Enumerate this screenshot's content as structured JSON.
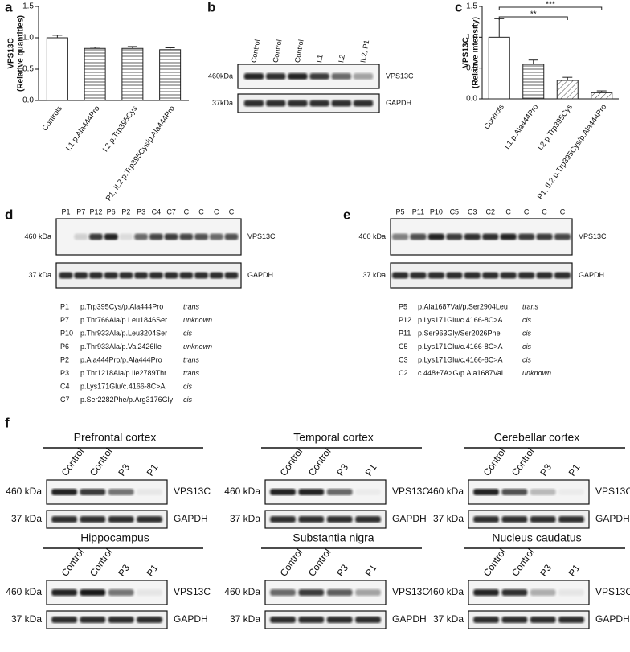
{
  "panel_labels": [
    "a",
    "b",
    "c",
    "d",
    "e",
    "f"
  ],
  "chart_data": [
    {
      "type": "bar",
      "ylabel": [
        "VPS13C",
        "(Relative quantities)"
      ],
      "categories": [
        "Controls",
        "I.1 p.Ala444Pro",
        "I.2 p.Trp395Cys",
        "P1, II.2 p.Trp395Cys/p.Ala444Pro"
      ],
      "values": [
        1.0,
        0.83,
        0.83,
        0.81
      ],
      "errors": [
        0.04,
        0.02,
        0.03,
        0.03
      ],
      "ylim": [
        0,
        1.5
      ],
      "yticks": [
        {
          "value": 0,
          "label": "0.0"
        },
        0.5,
        {
          "value": 1,
          "label": "1.0"
        },
        1.5
      ],
      "color": "#ffffff"
    },
    {
      "type": "bar",
      "ylabel": [
        "VPS13C",
        "(Relative intensity)"
      ],
      "categories": [
        "Controls",
        "I.1 p.Ala444Pro",
        "I.2 p.Trp395Cys",
        "P1, II.2 p.Trp395Cys/p.Ala444Pro"
      ],
      "values": [
        1.0,
        0.56,
        0.3,
        0.1
      ],
      "errors": [
        0.3,
        0.07,
        0.05,
        0.03
      ],
      "ylim": [
        0,
        1.5
      ],
      "yticks": [
        {
          "value": 0,
          "label": "0.0"
        },
        0.5,
        {
          "value": 1,
          "label": "1.0"
        },
        1.5
      ],
      "color": "#ffffff",
      "annotations": [
        "**",
        "***"
      ]
    }
  ],
  "blot_b": {
    "lanes": [
      "Control",
      "Control",
      "Control",
      "I.1",
      "I.2",
      "II.2, P1"
    ],
    "markers": [
      "460kDa",
      "37kDa"
    ],
    "proteins": [
      "VPS13C",
      "GAPDH"
    ]
  },
  "blot_d": {
    "lanes": [
      "P1",
      "P7",
      "P12",
      "P6",
      "P2",
      "P3",
      "C4",
      "C7",
      "C",
      "C",
      "C",
      "C"
    ],
    "markers": [
      "460 kDa",
      "37 kDa"
    ],
    "proteins": [
      "VPS13C",
      "GAPDH"
    ],
    "variants": [
      [
        "P1",
        "p.Trp395Cys/p.Ala444Pro",
        "trans"
      ],
      [
        "P7",
        "p.Thr766Ala/p.Leu1846Ser",
        "unknown"
      ],
      [
        "P10",
        "p.Thr933Ala/p.Leu3204Ser",
        "cis"
      ],
      [
        "P6",
        "p.Thr933Ala/p.Val2426Ile",
        "unknown"
      ],
      [
        "P2",
        "p.Ala444Pro/p.Ala444Pro",
        "trans"
      ],
      [
        "P3",
        "p.Thr1218Ala/p.Ile2789Thr",
        "trans"
      ],
      [
        "C4",
        "p.Lys171Glu/c.4166-8C>A",
        "cis"
      ],
      [
        "C7",
        "p.Ser2282Phe/p.Arg3176Gly",
        "cis"
      ]
    ]
  },
  "blot_e": {
    "lanes": [
      "P5",
      "P11",
      "P10",
      "C5",
      "C3",
      "C2",
      "C",
      "C",
      "C",
      "C"
    ],
    "markers": [
      "460 kDa",
      "37 kDa"
    ],
    "proteins": [
      "VPS13C",
      "GAPDH"
    ],
    "variants": [
      [
        "P5",
        "p.Ala1687Val/p.Ser2904Leu",
        "trans"
      ],
      [
        "P12",
        "p.Lys171Glu/c.4166-8C>A",
        "cis"
      ],
      [
        "P11",
        "p.Ser963Gly/Ser2026Phe",
        "cis"
      ],
      [
        "C5",
        "p.Lys171Glu/c.4166-8C>A",
        "cis"
      ],
      [
        "C3",
        "p.Lys171Glu/c.4166-8C>A",
        "cis"
      ],
      [
        "C2",
        "c.448+7A>G/p.Ala1687Val",
        "unknown"
      ]
    ]
  },
  "blots_f": [
    {
      "title": "Prefrontal cortex",
      "lanes": [
        "Control",
        "Control",
        "P3",
        "P1"
      ],
      "markers": [
        "460 kDa",
        "37 kDa"
      ],
      "proteins": [
        "VPS13C",
        "GAPDH"
      ]
    },
    {
      "title": "Temporal cortex",
      "lanes": [
        "Control",
        "Control",
        "P3",
        "P1"
      ],
      "markers": [
        "460 kDa",
        "37 kDa"
      ],
      "proteins": [
        "VPS13C",
        "GAPDH"
      ]
    },
    {
      "title": "Cerebellar cortex",
      "lanes": [
        "Control",
        "Control",
        "P3",
        "P1"
      ],
      "markers": [
        "460 kDa",
        "37 kDa"
      ],
      "proteins": [
        "VPS13C",
        "GAPDH"
      ]
    },
    {
      "title": "Hippocampus",
      "lanes": [
        "Control",
        "Control",
        "P3",
        "P1"
      ],
      "markers": [
        "460 kDa",
        "37 kDa"
      ],
      "proteins": [
        "VPS13C",
        "GAPDH"
      ]
    },
    {
      "title": "Substantia nigra",
      "lanes": [
        "Control",
        "Control",
        "P3",
        "P1"
      ],
      "markers": [
        "460 kDa",
        "37 kDa"
      ],
      "proteins": [
        "VPS13C",
        "GAPDH"
      ]
    },
    {
      "title": "Nucleus caudatus",
      "lanes": [
        "Control",
        "Control",
        "P3",
        "P1"
      ],
      "markers": [
        "460 kDa",
        "37 kDa"
      ],
      "proteins": [
        "VPS13C",
        "GAPDH"
      ]
    }
  ]
}
